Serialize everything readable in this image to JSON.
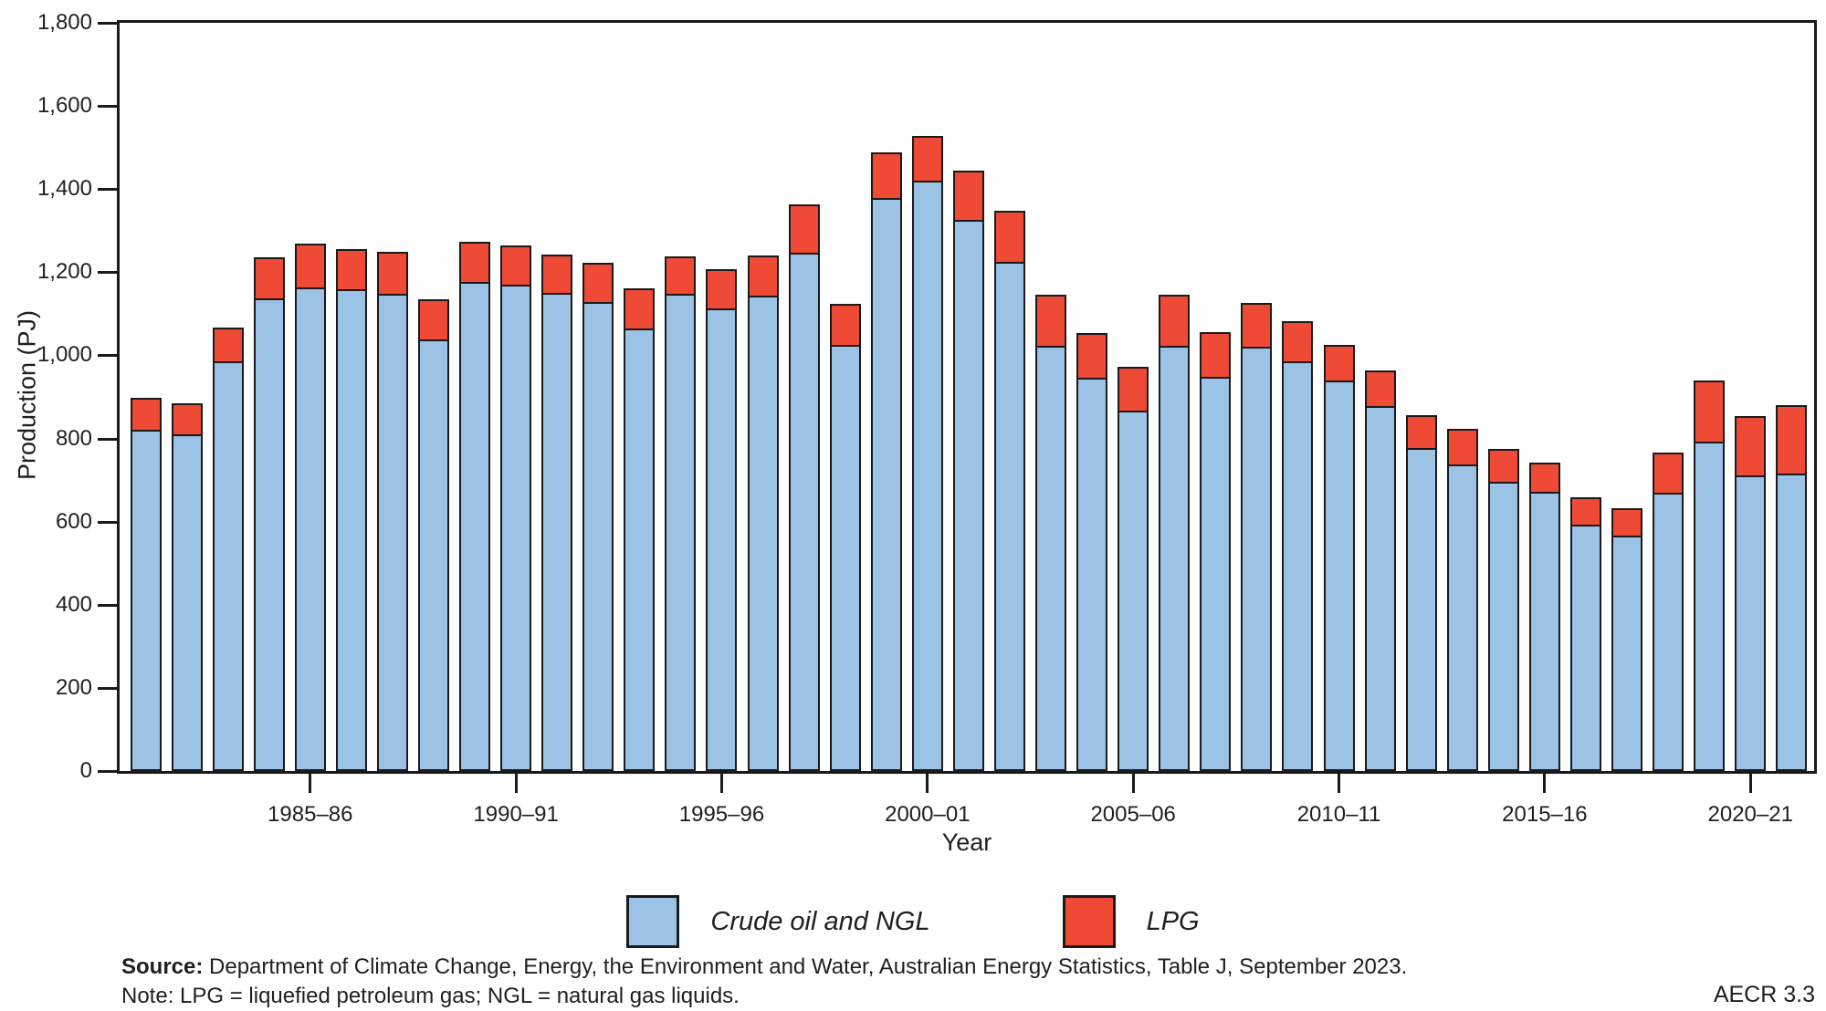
{
  "figure": {
    "y_axis_label": "Production (PJ)",
    "x_axis_label": "Year",
    "source_label": "Source:",
    "source_text": " Department of Climate Change, Energy, the Environment and Water, Australian Energy Statistics, Table J, September 2023.",
    "note_text": "Note: LPG = liquefied petroleum gas; NGL = natural gas liquids.",
    "figure_tag": "AECR 3.3"
  },
  "colors": {
    "crude_blue": "#9CC2E5",
    "lpg_red": "#EE4A35",
    "stroke": "#1a1a1a"
  },
  "chart_data": {
    "type": "bar",
    "stacked": true,
    "title": "",
    "xlabel": "Year",
    "ylabel": "Production (PJ)",
    "ylim": [
      0,
      1800
    ],
    "y_tick_step": 200,
    "y_tick_values": [
      0,
      200,
      400,
      600,
      800,
      1000,
      1200,
      1400,
      1600,
      1800
    ],
    "y_tick_labels": [
      "0",
      "200",
      "400",
      "600",
      "800",
      "1,000",
      "1,200",
      "1,400",
      "1,600",
      "1,800"
    ],
    "grid": false,
    "legend_position": "bottom",
    "categories": [
      "1981–82",
      "1982–83",
      "1983–84",
      "1984–85",
      "1985–86",
      "1986–87",
      "1987–88",
      "1988–89",
      "1989–90",
      "1990–91",
      "1991–92",
      "1992–93",
      "1993–94",
      "1994–95",
      "1995–96",
      "1996–97",
      "1997–98",
      "1998–99",
      "1999–00",
      "2000–01",
      "2001–02",
      "2002–03",
      "2003–04",
      "2004–05",
      "2005–06",
      "2006–07",
      "2007–08",
      "2008–09",
      "2009–10",
      "2010–11",
      "2011–12",
      "2012–13",
      "2013–14",
      "2014–15",
      "2015–16",
      "2016–17",
      "2017–18",
      "2018–19",
      "2019–20",
      "2020–21",
      "2021–22"
    ],
    "x_tick_indices": [
      4,
      9,
      14,
      19,
      24,
      29,
      34,
      39
    ],
    "x_tick_labels": [
      "1985–86",
      "1990–91",
      "1995–96",
      "2000–01",
      "2005–06",
      "2010–11",
      "2015–16",
      "2020–21"
    ],
    "series": [
      {
        "name": "Crude oil and NGL",
        "color": "#9CC2E5",
        "values": [
          820,
          809,
          986,
          1138,
          1164,
          1160,
          1147,
          1038,
          1177,
          1171,
          1151,
          1129,
          1064,
          1147,
          1112,
          1143,
          1247,
          1025,
          1378,
          1421,
          1325,
          1225,
          1022,
          946,
          868,
          1022,
          948,
          1021,
          986,
          940,
          879,
          778,
          737,
          696,
          672,
          593,
          567,
          670,
          792,
          712,
          716
        ]
      },
      {
        "name": "LPG",
        "color": "#EE4A35",
        "values": [
          81,
          79,
          85,
          103,
          109,
          102,
          105,
          100,
          101,
          98,
          96,
          99,
          100,
          94,
          98,
          100,
          120,
          104,
          115,
          112,
          123,
          127,
          127,
          111,
          109,
          127,
          112,
          109,
          100,
          89,
          89,
          83,
          91,
          84,
          74,
          70,
          71,
          102,
          151,
          148,
          169
        ]
      }
    ]
  }
}
